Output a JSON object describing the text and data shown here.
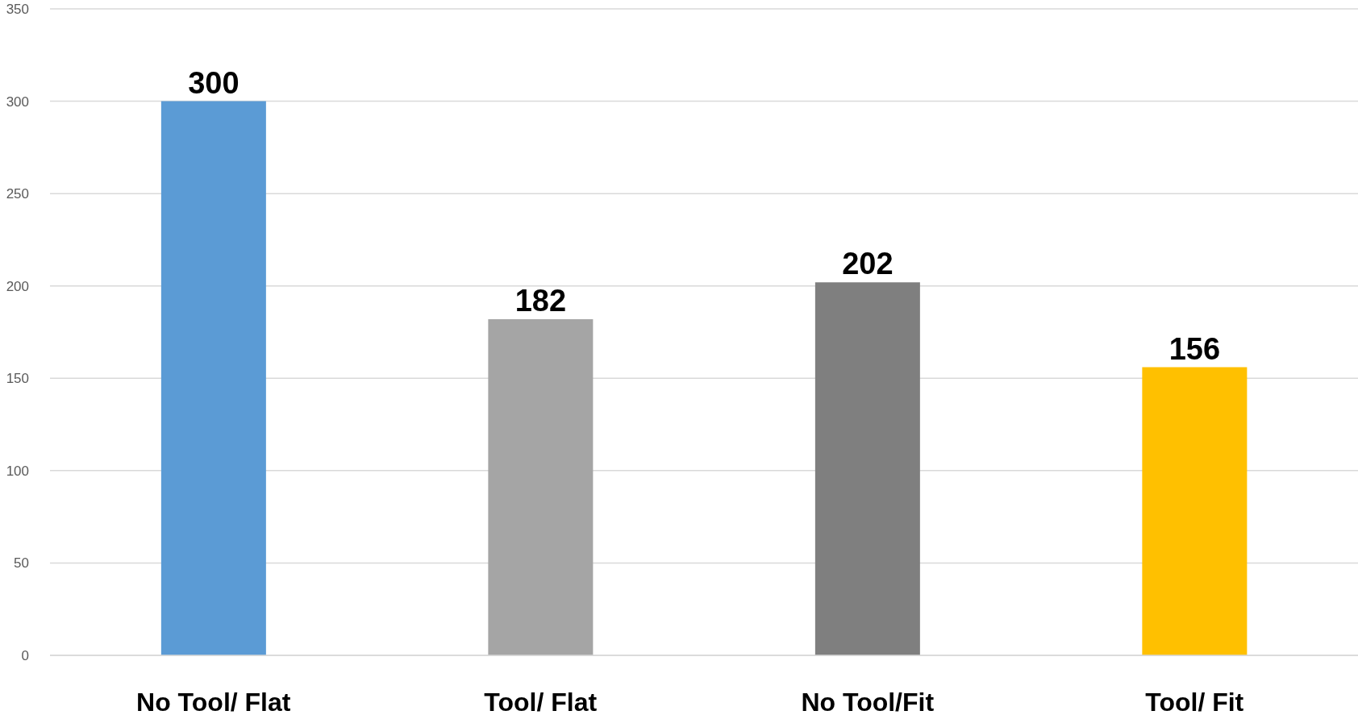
{
  "chart_data": {
    "type": "bar",
    "categories": [
      "No Tool/ Flat",
      "Tool/ Flat",
      "No Tool/Fit",
      "Tool/ Fit"
    ],
    "values": [
      300,
      182,
      202,
      156
    ],
    "colors": [
      "#5b9bd5",
      "#a5a5a5",
      "#7f7f7f",
      "#ffc000"
    ],
    "ylim": [
      0,
      350
    ],
    "yticks": [
      0,
      50,
      100,
      150,
      200,
      250,
      300,
      350
    ],
    "grid": "y",
    "data_labels": true
  }
}
